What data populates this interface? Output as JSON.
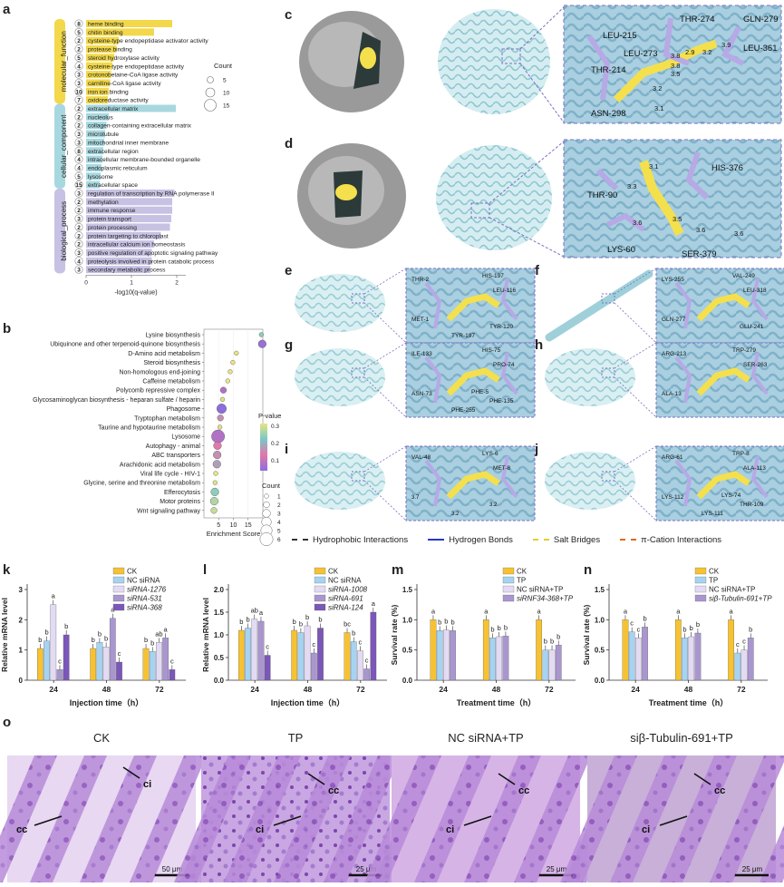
{
  "panels": {
    "a": "a",
    "b": "b",
    "c": "c",
    "d": "d",
    "e": "e",
    "f": "f",
    "g": "g",
    "h": "h",
    "i": "i",
    "j": "j",
    "k": "k",
    "l": "l",
    "m": "m",
    "n": "n",
    "o": "o"
  },
  "colors": {
    "yellow": "#f2d84a",
    "cyan": "#a8d8df",
    "lav": "#c7c1e3",
    "purple": "#8e6fc1",
    "gray_dark": "#555555"
  },
  "go_chart": {
    "xlabel": "-log10(q-value)",
    "xticks": [
      "0",
      "1",
      "2"
    ],
    "count_legend": {
      "title": "Count",
      "values": [
        "5",
        "10",
        "15"
      ]
    },
    "groups": [
      {
        "name": "molecular_function",
        "color": "#f2d84a",
        "items": [
          {
            "term": "heme binding",
            "count": 8,
            "q": 1.9
          },
          {
            "term": "chitin binding",
            "count": 5,
            "q": 1.5
          },
          {
            "term": "cysteine-type endopeptidase activator activity",
            "count": 2,
            "q": 0.72
          },
          {
            "term": "protease binding",
            "count": 2,
            "q": 0.67
          },
          {
            "term": "steroid hydroxylase activity",
            "count": 5,
            "q": 0.62
          },
          {
            "term": "cysteine-type endopeptidase activity",
            "count": 4,
            "q": 0.58
          },
          {
            "term": "crotonobetaine-CoA ligase activity",
            "count": 3,
            "q": 0.55
          },
          {
            "term": "carnitine-CoA ligase activity",
            "count": 3,
            "q": 0.53
          },
          {
            "term": "iron ion binding",
            "count": 10,
            "q": 0.5
          },
          {
            "term": "oxidoreductase activity",
            "count": 7,
            "q": 0.48
          }
        ]
      },
      {
        "name": "cellular_component",
        "color": "#a8d8df",
        "items": [
          {
            "term": "extracellular matrix",
            "count": 2,
            "q": 1.98
          },
          {
            "term": "nucleolus",
            "count": 2,
            "q": 0.5
          },
          {
            "term": "collagen-containing extracellular matrix",
            "count": 2,
            "q": 0.45
          },
          {
            "term": "microtubule",
            "count": 3,
            "q": 0.42
          },
          {
            "term": "mitochondrial inner membrane",
            "count": 3,
            "q": 0.4
          },
          {
            "term": "extracellular region",
            "count": 8,
            "q": 0.38
          },
          {
            "term": "intracellular membrane-bounded organelle",
            "count": 4,
            "q": 0.36
          },
          {
            "term": "endoplasmic reticulum",
            "count": 4,
            "q": 0.34
          },
          {
            "term": "lysosome",
            "count": 5,
            "q": 0.32
          },
          {
            "term": "extracellular space",
            "count": 15,
            "q": 0.3
          }
        ]
      },
      {
        "name": "biological_process",
        "color": "#c7c1e3",
        "items": [
          {
            "term": "regulation of transcription by RNA polymerase II",
            "count": 3,
            "q": 1.95
          },
          {
            "term": "methylation",
            "count": 2,
            "q": 1.9
          },
          {
            "term": "immune response",
            "count": 2,
            "q": 1.9
          },
          {
            "term": "protein transport",
            "count": 3,
            "q": 1.88
          },
          {
            "term": "protein processing",
            "count": 2,
            "q": 1.85
          },
          {
            "term": "protein targeting to chloroplast",
            "count": 2,
            "q": 1.65
          },
          {
            "term": "intracellular calcium ion homeostasis",
            "count": 2,
            "q": 1.5
          },
          {
            "term": "positive regulation of apoptotic signaling pathway",
            "count": 3,
            "q": 1.45
          },
          {
            "term": "proteolysis involved in protein catabolic process",
            "count": 4,
            "q": 1.45
          },
          {
            "term": "secondary metabolic process",
            "count": 3,
            "q": 1.42
          }
        ]
      }
    ]
  },
  "kegg_chart": {
    "xlabel": "Enrichment Score",
    "xticks": [
      "5",
      "10",
      "15"
    ],
    "pvalue_legend": {
      "title": "P-value",
      "ticks": [
        "0.3",
        "0.2",
        "0.1"
      ]
    },
    "count_legend": {
      "title": "Count",
      "values": [
        "1",
        "2",
        "3",
        "4",
        "5",
        "6"
      ]
    },
    "pathways": [
      {
        "name": "Lysine biosynthesis",
        "score": 19.5,
        "p": 0.25,
        "count": 1
      },
      {
        "name": "Ubiquinone and other terpenoid-quinone biosynthesis",
        "score": 19.8,
        "p": 0.02,
        "count": 3
      },
      {
        "name": "D-Amino acid metabolism",
        "score": 11.0,
        "p": 0.33,
        "count": 1
      },
      {
        "name": "Steroid biosynthesis",
        "score": 9.8,
        "p": 0.33,
        "count": 1
      },
      {
        "name": "Non-homologous end-joining",
        "score": 8.9,
        "p": 0.33,
        "count": 1
      },
      {
        "name": "Caffeine metabolism",
        "score": 8.1,
        "p": 0.33,
        "count": 1
      },
      {
        "name": "Polycomb repressive complex",
        "score": 6.6,
        "p": 0.05,
        "count": 2
      },
      {
        "name": "Glycosaminoglycan biosynthesis - heparan sulfate / heparin",
        "score": 6.3,
        "p": 0.32,
        "count": 1
      },
      {
        "name": "Phagosome",
        "score": 6.0,
        "p": 0.0,
        "count": 4
      },
      {
        "name": "Tryptophan metabolism",
        "score": 5.6,
        "p": 0.15,
        "count": 2
      },
      {
        "name": "Taurine and hypotaurine metabolism",
        "score": 5.4,
        "p": 0.32,
        "count": 1
      },
      {
        "name": "Lysosome",
        "score": 4.8,
        "p": 0.05,
        "count": 6
      },
      {
        "name": "Autophagy - animal",
        "score": 4.6,
        "p": 0.12,
        "count": 3
      },
      {
        "name": "ABC transporters",
        "score": 4.5,
        "p": 0.15,
        "count": 3
      },
      {
        "name": "Arachidonic acid metabolism",
        "score": 4.4,
        "p": 0.17,
        "count": 3
      },
      {
        "name": "Viral life cycle - HIV-1",
        "score": 4.0,
        "p": 0.33,
        "count": 1
      },
      {
        "name": "Glycine, serine and threonine metabolism",
        "score": 3.8,
        "p": 0.32,
        "count": 1
      },
      {
        "name": "Efferocytosis",
        "score": 3.7,
        "p": 0.25,
        "count": 3
      },
      {
        "name": "Motor proteins",
        "score": 3.5,
        "p": 0.28,
        "count": 3
      },
      {
        "name": "Wnt signaling pathway",
        "score": 3.4,
        "p": 0.3,
        "count": 2
      }
    ]
  },
  "docking": {
    "c_labels": [
      "THR-274",
      "GLN-279",
      "LEU-215",
      "LEU-273",
      "LEU-361",
      "THR-214",
      "ASN-298",
      "3.8",
      "3.5",
      "3.2",
      "2.9",
      "3.9",
      "3.1",
      "3.2",
      "3.8"
    ],
    "d_labels": [
      "HIS-376",
      "THR-90",
      "LYS-60",
      "SER-379",
      "3.1",
      "3.3",
      "3.6",
      "3.5",
      "3.6",
      "3.6"
    ],
    "e_labels": [
      "THR-2",
      "HIS-197",
      "LEU-116",
      "MET-1",
      "TYR-120",
      "TYR-197"
    ],
    "f_labels": [
      "LYS-255",
      "VAL-249",
      "LEU-318",
      "GLN-277",
      "GLU-241"
    ],
    "g_labels": [
      "ILE-133",
      "HIS-75",
      "PRO-74",
      "ASN-73",
      "PHE-135",
      "PHE-255",
      "PHE-5"
    ],
    "h_labels": [
      "ARG-213",
      "TRP-279",
      "SER-263",
      "ALA-13"
    ],
    "i_labels": [
      "VAL-48",
      "LYS-6",
      "MET-8",
      "3.7",
      "3.2",
      "3.2"
    ],
    "j_labels": [
      "ARG-61",
      "TRP-8",
      "ALA-113",
      "LYS-112",
      "THR-109",
      "LYS-111",
      "LYS-74"
    ]
  },
  "interaction_legend": [
    {
      "label": "Hydrophobic Interactions",
      "color": "#333333",
      "style": "dashed"
    },
    {
      "label": "Hydrogen Bonds",
      "color": "#2438c9",
      "style": "solid"
    },
    {
      "label": "Salt Bridges",
      "color": "#e2cf2a",
      "style": "dashed"
    },
    {
      "label": "π-Cation Interactions",
      "color": "#e06a1e",
      "style": "dashed"
    }
  ],
  "bar_charts": [
    {
      "id": "k",
      "ylabel": "Relative mRNA level",
      "xlabel": "Injection time（h）",
      "groups": [
        "24",
        "48",
        "72"
      ],
      "ymax": 3,
      "yticks": [
        "0",
        "1",
        "2",
        "3"
      ],
      "legend": [
        {
          "name": "CK",
          "italic": false
        },
        {
          "name": "NC siRNA",
          "italic": false
        },
        {
          "name": "siRNA-1276",
          "italic": true
        },
        {
          "name": "siRNA-531",
          "italic": true
        },
        {
          "name": "siRNA-368",
          "italic": true
        }
      ],
      "colors": [
        "#f6c233",
        "#a6d3f2",
        "#e3dbf4",
        "#a996cf",
        "#7b57b8"
      ],
      "values": [
        [
          1.05,
          1.3,
          2.5,
          0.35,
          1.5
        ],
        [
          1.05,
          1.25,
          1.1,
          2.05,
          0.6
        ],
        [
          1.05,
          0.95,
          1.25,
          1.4,
          0.35
        ]
      ],
      "letters": [
        [
          "b",
          "b",
          "a",
          "c",
          "b"
        ],
        [
          "b",
          "b",
          "b",
          "a",
          "c"
        ],
        [
          "b",
          "b",
          "ab",
          "a",
          "c"
        ]
      ]
    },
    {
      "id": "l",
      "ylabel": "Relative mRNA level",
      "xlabel": "Injection time（h）",
      "groups": [
        "24",
        "48",
        "72"
      ],
      "ymax": 2,
      "yticks": [
        "0.0",
        "0.5",
        "1.0",
        "1.5",
        "2.0"
      ],
      "legend": [
        {
          "name": "CK",
          "italic": false
        },
        {
          "name": "NC siRNA",
          "italic": false
        },
        {
          "name": "siRNA-1008",
          "italic": true
        },
        {
          "name": "siRNA-691",
          "italic": true
        },
        {
          "name": "siRNA-124",
          "italic": true
        }
      ],
      "colors": [
        "#f6c233",
        "#a6d3f2",
        "#e3dbf4",
        "#a996cf",
        "#7b57b8"
      ],
      "values": [
        [
          1.1,
          1.15,
          1.35,
          1.3,
          0.55
        ],
        [
          1.1,
          1.05,
          1.2,
          0.6,
          1.15
        ],
        [
          1.05,
          0.85,
          0.65,
          0.25,
          1.5
        ]
      ],
      "letters": [
        [
          "b",
          "b",
          "ab",
          "a",
          "c"
        ],
        [
          "b",
          "b",
          "b",
          "c",
          "b"
        ],
        [
          "bc",
          "b",
          "c",
          "c",
          "a"
        ]
      ]
    },
    {
      "id": "m",
      "ylabel": "Survival rate (%)",
      "xlabel": "Treatment time（h）",
      "groups": [
        "24",
        "48",
        "72"
      ],
      "ymax": 1.5,
      "yticks": [
        "0.0",
        "0.5",
        "1.0",
        "1.5"
      ],
      "legend": [
        {
          "name": "CK",
          "italic": false
        },
        {
          "name": "TP",
          "italic": false
        },
        {
          "name": "NC siRNA+TP",
          "italic": false
        },
        {
          "name": "siRNF34-368+TP",
          "italic": true
        }
      ],
      "colors": [
        "#f6c233",
        "#a6d3f2",
        "#e3dbf4",
        "#a996cf"
      ],
      "values": [
        [
          1.0,
          0.82,
          0.83,
          0.82
        ],
        [
          1.0,
          0.7,
          0.72,
          0.73
        ],
        [
          1.0,
          0.5,
          0.5,
          0.58
        ]
      ],
      "letters": [
        [
          "a",
          "b",
          "b",
          "b"
        ],
        [
          "a",
          "b",
          "b",
          "b"
        ],
        [
          "a",
          "b",
          "b",
          "b"
        ]
      ]
    },
    {
      "id": "n",
      "ylabel": "Survival rate (%)",
      "xlabel": "Treatment time（h）",
      "groups": [
        "24",
        "48",
        "72"
      ],
      "ymax": 1.5,
      "yticks": [
        "0.0",
        "0.5",
        "1.0",
        "1.5"
      ],
      "legend": [
        {
          "name": "CK",
          "italic": false
        },
        {
          "name": "TP",
          "italic": false
        },
        {
          "name": "NC siRNA+TP",
          "italic": false
        },
        {
          "name": "siβ-Tubulin-691+TP",
          "italic": true
        }
      ],
      "colors": [
        "#f6c233",
        "#a6d3f2",
        "#e3dbf4",
        "#a996cf"
      ],
      "values": [
        [
          1.0,
          0.8,
          0.7,
          0.88
        ],
        [
          1.0,
          0.7,
          0.72,
          0.78
        ],
        [
          1.0,
          0.45,
          0.5,
          0.7
        ]
      ],
      "letters": [
        [
          "a",
          "c",
          "c",
          "b"
        ],
        [
          "a",
          "b",
          "b",
          "b"
        ],
        [
          "a",
          "c",
          "c",
          "b"
        ]
      ]
    }
  ],
  "histology": [
    {
      "title": "CK",
      "labels": [
        "cc",
        "ci"
      ],
      "scale": "50 μm"
    },
    {
      "title": "TP",
      "labels": [
        "ci",
        "cc"
      ],
      "scale": "25 μm"
    },
    {
      "title": "NC siRNA+TP",
      "labels": [
        "ci",
        "cc"
      ],
      "scale": "25 μm"
    },
    {
      "title": "siβ-Tubulin-691+TP",
      "labels": [
        "ci",
        "cc"
      ],
      "scale": "25 μm"
    }
  ]
}
